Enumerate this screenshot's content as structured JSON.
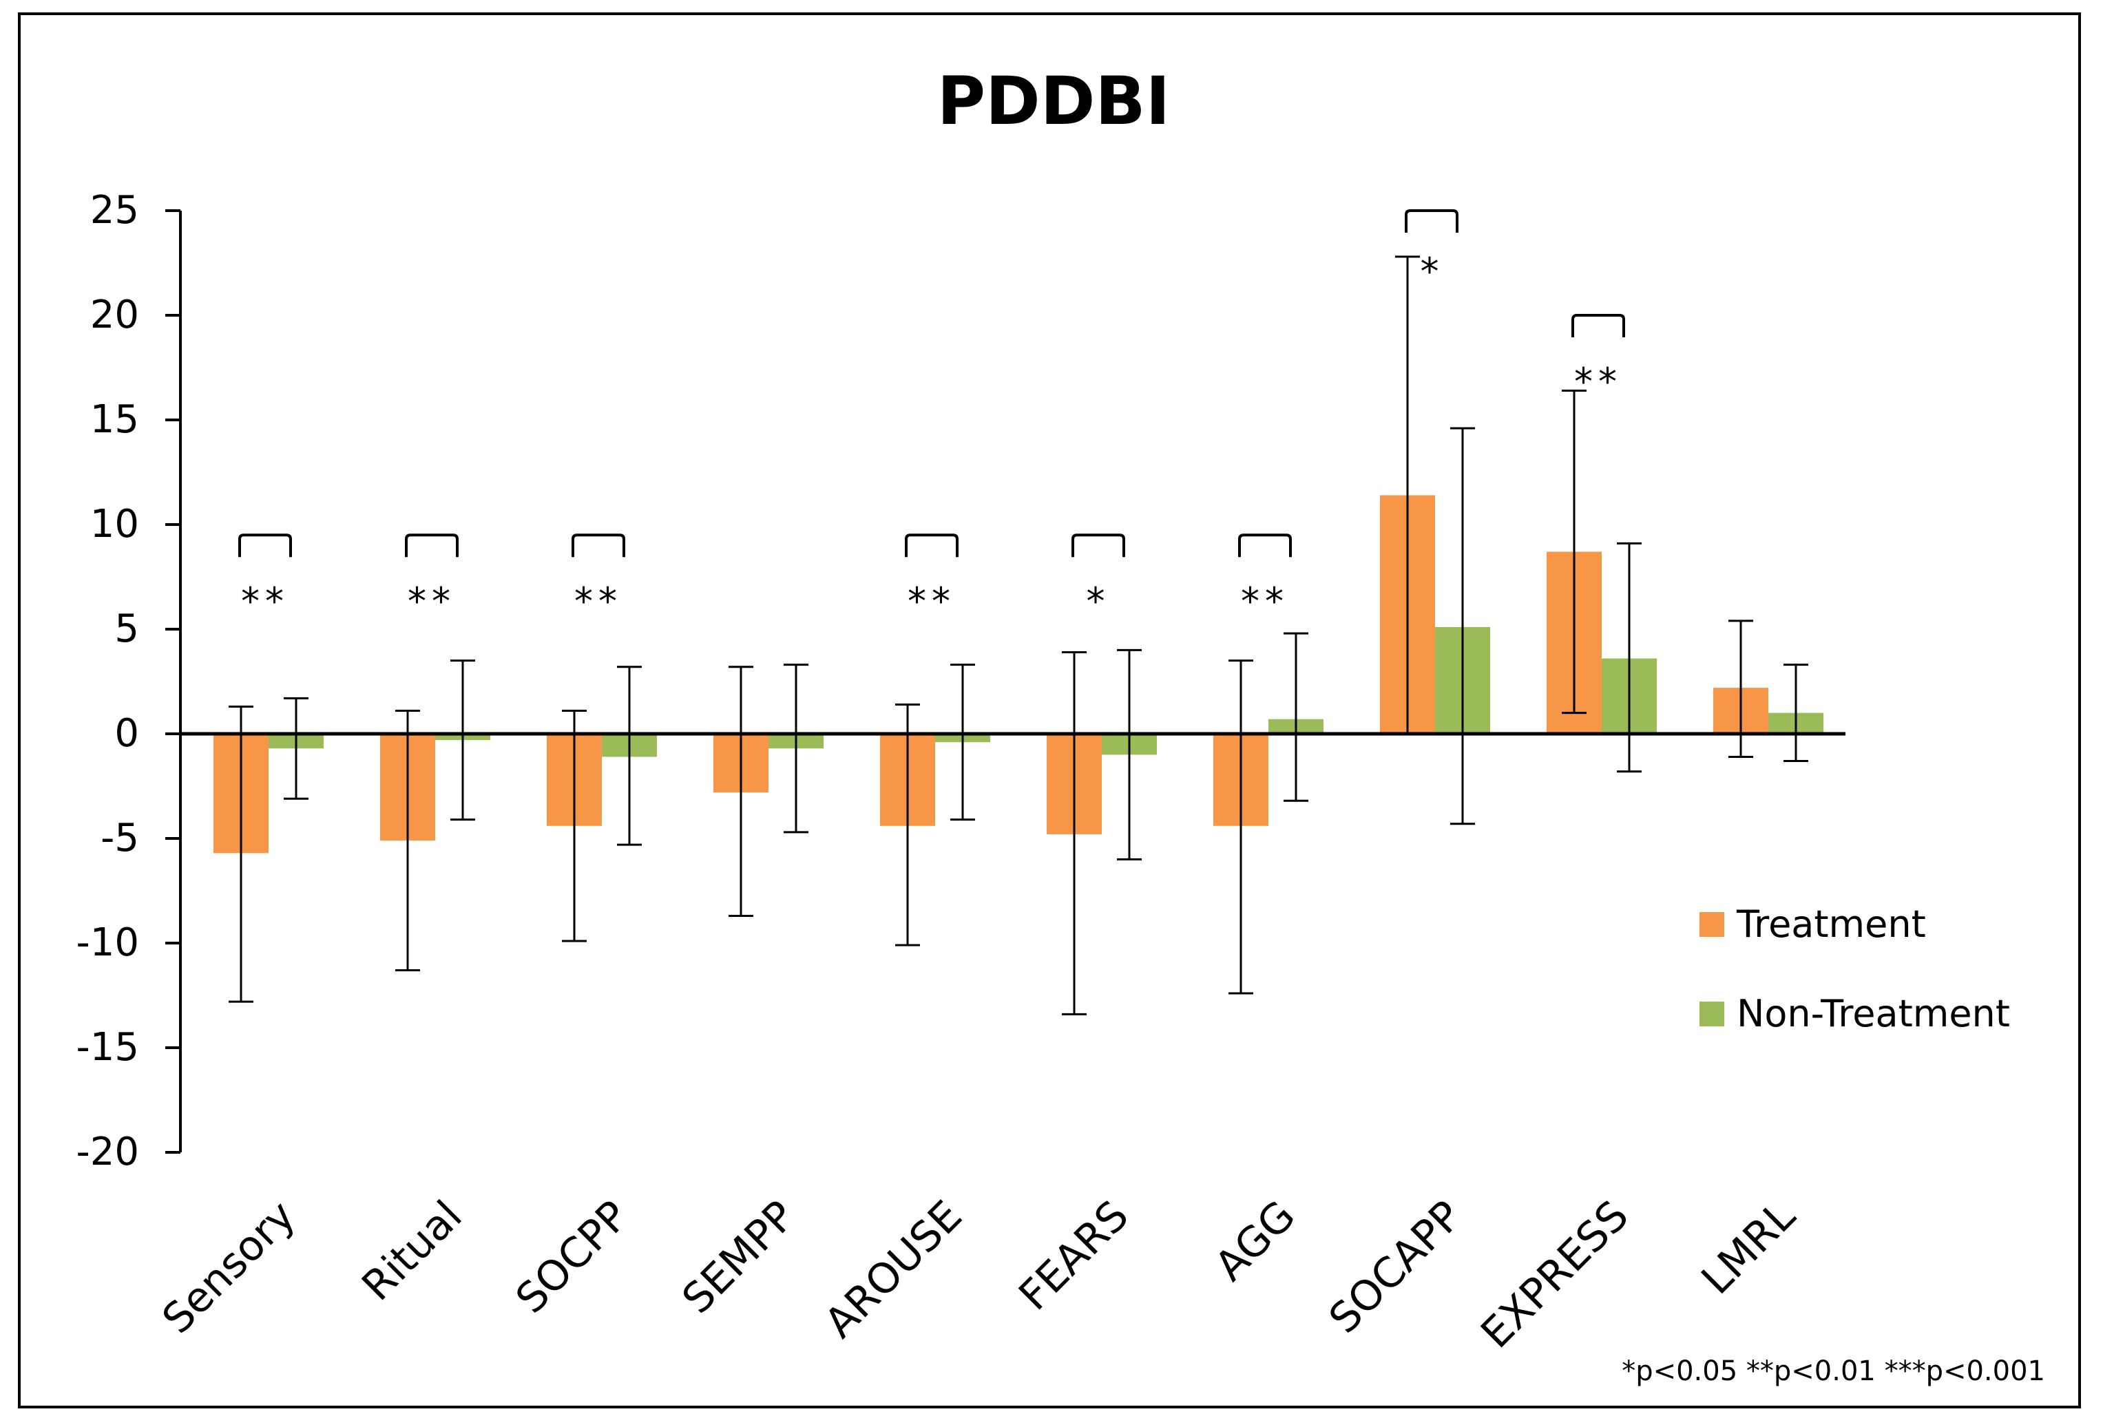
{
  "chart_data": {
    "type": "bar",
    "title": "PDDBI",
    "xlabel": "",
    "ylabel": "",
    "ylim": [
      -20,
      25
    ],
    "yticks": [
      "25",
      "20",
      "15",
      "10",
      "5",
      "0",
      "-5",
      "-10",
      "-15",
      "-20"
    ],
    "categories": [
      "Sensory",
      "Ritual",
      "SOCPP",
      "SEMPP",
      "AROUSE",
      "FEARS",
      "AGG",
      "SOCAPP",
      "EXPRESS",
      "LMRL"
    ],
    "series": [
      {
        "name": "Treatment",
        "color": "#F79646",
        "values": [
          -5.7,
          -5.1,
          -4.4,
          -2.8,
          -4.4,
          -4.8,
          -4.4,
          11.4,
          8.7,
          2.2
        ],
        "err_high": [
          1.3,
          1.1,
          1.1,
          3.2,
          1.4,
          3.9,
          3.5,
          22.8,
          16.4,
          5.4
        ],
        "err_low": [
          -12.8,
          -11.3,
          -9.9,
          -8.7,
          -10.1,
          -13.4,
          -12.4,
          0,
          1.0,
          -1.1
        ]
      },
      {
        "name": "Non-Treatment",
        "color": "#9BBB59",
        "values": [
          -0.7,
          -0.3,
          -1.1,
          -0.7,
          -0.4,
          -1.0,
          0.7,
          5.1,
          3.6,
          1.0
        ],
        "err_high": [
          1.7,
          3.5,
          3.2,
          3.3,
          3.3,
          4.0,
          4.8,
          14.6,
          9.1,
          3.3
        ],
        "err_low": [
          -3.1,
          -4.1,
          -5.3,
          -4.7,
          -4.1,
          -6.0,
          -3.2,
          -4.3,
          -1.8,
          -1.3
        ]
      }
    ],
    "significance": [
      "**",
      "**",
      "**",
      "",
      "**",
      "*",
      "**",
      "*",
      "**",
      ""
    ],
    "legend_position": "right",
    "footnote": "*p<0.05 **p<0.01 ***p<0.001"
  }
}
